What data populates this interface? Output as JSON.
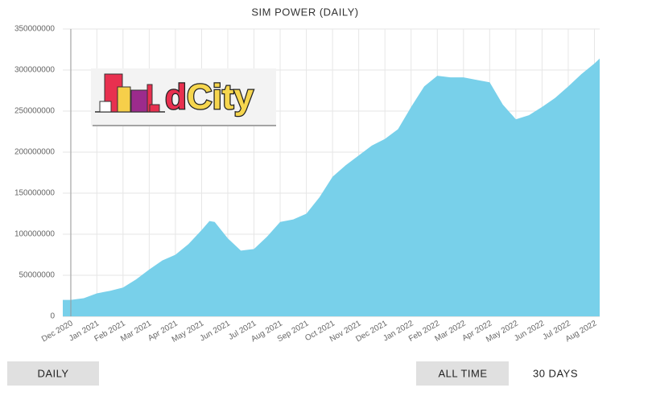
{
  "chart_data": {
    "type": "area",
    "title": "SIM POWER (DAILY)",
    "x": [
      -0.3,
      0,
      0.5,
      1,
      1.5,
      2,
      2.5,
      3,
      3.5,
      4,
      4.5,
      5,
      5.3,
      5.5,
      6,
      6.5,
      7,
      7.5,
      8,
      8.5,
      9,
      9.5,
      10,
      10.5,
      11,
      11.5,
      12,
      12.5,
      13,
      13.5,
      14,
      14.5,
      15,
      15.5,
      16,
      16.5,
      17,
      17.5,
      18,
      18.5,
      19,
      19.5,
      20,
      20.2
    ],
    "series": [
      {
        "color": "#78d0ea",
        "values": [
          20000000,
          20000000,
          22000000,
          28000000,
          31000000,
          35000000,
          45000000,
          57000000,
          68000000,
          75000000,
          88000000,
          105000000,
          116000000,
          115000000,
          95000000,
          80000000,
          82000000,
          97000000,
          115000000,
          118000000,
          125000000,
          145000000,
          170000000,
          184000000,
          196000000,
          208000000,
          216000000,
          228000000,
          255000000,
          280000000,
          293000000,
          291000000,
          291000000,
          288000000,
          285000000,
          258000000,
          240000000,
          245000000,
          255000000,
          266000000,
          280000000,
          295000000,
          308000000,
          314000000
        ]
      }
    ],
    "xlim": [
      -0.3,
      20.2
    ],
    "xticks": [
      {
        "value": 0,
        "label": "Dec 2020"
      },
      {
        "value": 1,
        "label": "Jan 2021"
      },
      {
        "value": 2,
        "label": "Feb 2021"
      },
      {
        "value": 3,
        "label": "Mar 2021"
      },
      {
        "value": 4,
        "label": "Apr 2021"
      },
      {
        "value": 5,
        "label": "May 2021"
      },
      {
        "value": 6,
        "label": "Jun 2021"
      },
      {
        "value": 7,
        "label": "Jul 2021"
      },
      {
        "value": 8,
        "label": "Aug 2021"
      },
      {
        "value": 9,
        "label": "Sep 2021"
      },
      {
        "value": 10,
        "label": "Oct 2021"
      },
      {
        "value": 11,
        "label": "Nov 2021"
      },
      {
        "value": 12,
        "label": "Dec 2021"
      },
      {
        "value": 13,
        "label": "Jan 2022"
      },
      {
        "value": 14,
        "label": "Feb 2022"
      },
      {
        "value": 15,
        "label": "Mar 2022"
      },
      {
        "value": 16,
        "label": "Apr 2022"
      },
      {
        "value": 17,
        "label": "May 2022"
      },
      {
        "value": 18,
        "label": "Jun 2022"
      },
      {
        "value": 19,
        "label": "Jul 2022"
      },
      {
        "value": 20,
        "label": "Aug 2022"
      }
    ],
    "ylim": [
      0,
      350000000
    ],
    "yticks": [
      0,
      50000000,
      100000000,
      150000000,
      200000000,
      250000000,
      300000000,
      350000000
    ],
    "grid": true
  },
  "logo_text": [
    "d",
    "City"
  ],
  "buttons": [
    "DAILY",
    "ALL TIME",
    "30 DAYS"
  ]
}
